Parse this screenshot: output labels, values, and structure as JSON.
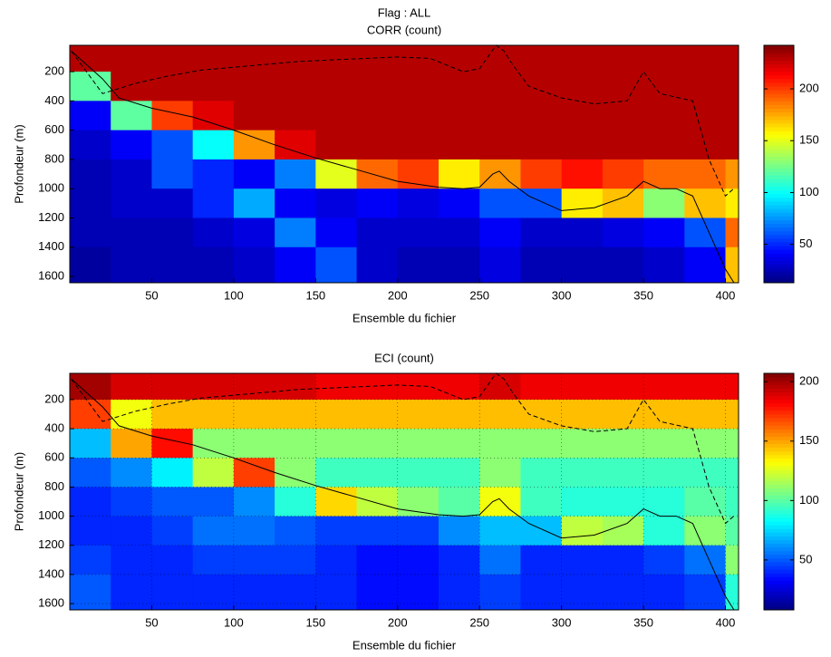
{
  "chart_data": [
    {
      "type": "heatmap",
      "super_title": "Flag : ALL",
      "title": "CORR (count)",
      "xlabel": "Ensemble du fichier",
      "ylabel": "Profondeur (m)",
      "xlim": [
        0,
        408
      ],
      "ylim": [
        20,
        1643
      ],
      "y_reversed": true,
      "xticks": [
        50,
        100,
        150,
        200,
        250,
        300,
        350,
        400
      ],
      "yticks": [
        200,
        400,
        600,
        800,
        1000,
        1200,
        1400,
        1600
      ],
      "grid": false,
      "colormap": "jet",
      "x_edges": [
        0,
        25,
        50,
        75,
        100,
        125,
        150,
        175,
        200,
        225,
        250,
        275,
        300,
        325,
        350,
        375,
        400,
        408
      ],
      "y_edges": [
        20,
        200,
        400,
        600,
        800,
        1000,
        1200,
        1400,
        1643
      ],
      "values": [
        [
          230,
          230,
          230,
          230,
          230,
          230,
          230,
          230,
          230,
          230,
          230,
          230,
          230,
          230,
          230,
          230,
          230
        ],
        [
          120,
          230,
          230,
          230,
          230,
          230,
          230,
          230,
          230,
          230,
          230,
          230,
          230,
          230,
          230,
          230,
          230
        ],
        [
          40,
          120,
          200,
          220,
          230,
          230,
          230,
          230,
          230,
          230,
          230,
          230,
          230,
          230,
          230,
          230,
          230
        ],
        [
          30,
          40,
          60,
          100,
          180,
          220,
          230,
          230,
          230,
          230,
          230,
          230,
          230,
          230,
          230,
          230,
          230
        ],
        [
          25,
          30,
          60,
          50,
          40,
          70,
          150,
          190,
          200,
          160,
          180,
          200,
          210,
          200,
          190,
          190,
          180
        ],
        [
          25,
          30,
          30,
          50,
          80,
          40,
          35,
          40,
          35,
          40,
          60,
          60,
          160,
          170,
          130,
          170,
          160
        ],
        [
          25,
          25,
          25,
          30,
          35,
          70,
          40,
          30,
          30,
          30,
          40,
          30,
          30,
          35,
          40,
          60,
          190
        ],
        [
          20,
          25,
          25,
          25,
          30,
          40,
          60,
          30,
          25,
          25,
          35,
          25,
          25,
          25,
          30,
          40,
          170
        ]
      ],
      "colorbar": {
        "lim": [
          13,
          242
        ],
        "ticks": [
          50,
          100,
          150,
          200
        ]
      },
      "lines": [
        {
          "style": "solid",
          "color": "#000000",
          "x": [
            1,
            10,
            20,
            30,
            50,
            75,
            100,
            125,
            150,
            175,
            200,
            225,
            240,
            250,
            258,
            262,
            268,
            280,
            300,
            320,
            340,
            350,
            360,
            370,
            380,
            390,
            400,
            405
          ],
          "y": [
            60,
            150,
            250,
            380,
            450,
            510,
            600,
            700,
            790,
            870,
            950,
            990,
            1000,
            990,
            900,
            880,
            950,
            1050,
            1150,
            1130,
            1050,
            950,
            1000,
            1000,
            1050,
            1300,
            1550,
            1640
          ]
        },
        {
          "style": "dashed",
          "color": "#000000",
          "x": [
            1,
            20,
            40,
            60,
            80,
            100,
            120,
            140,
            160,
            180,
            200,
            220,
            240,
            250,
            255,
            260,
            265,
            270,
            280,
            300,
            320,
            340,
            345,
            350,
            360,
            380,
            390,
            400,
            405
          ],
          "y": [
            60,
            350,
            280,
            230,
            190,
            170,
            150,
            130,
            120,
            110,
            100,
            110,
            200,
            180,
            100,
            20,
            60,
            150,
            300,
            380,
            420,
            400,
            300,
            200,
            350,
            400,
            800,
            1050,
            1000
          ]
        }
      ]
    },
    {
      "type": "heatmap",
      "title": "ECI (count)",
      "xlabel": "Ensemble du fichier",
      "ylabel": "Profondeur (m)",
      "xlim": [
        0,
        408
      ],
      "ylim": [
        20,
        1643
      ],
      "y_reversed": true,
      "xticks": [
        50,
        100,
        150,
        200,
        250,
        300,
        350,
        400
      ],
      "yticks": [
        200,
        400,
        600,
        800,
        1000,
        1200,
        1400,
        1600
      ],
      "grid": true,
      "colormap": "jet",
      "x_edges": [
        0,
        25,
        50,
        75,
        100,
        125,
        150,
        175,
        200,
        225,
        250,
        275,
        300,
        325,
        350,
        375,
        400,
        408
      ],
      "y_edges": [
        20,
        200,
        400,
        600,
        800,
        1000,
        1200,
        1400,
        1643
      ],
      "values": [
        [
          200,
          190,
          190,
          190,
          190,
          190,
          185,
          185,
          185,
          185,
          190,
          185,
          185,
          185,
          185,
          185,
          185
        ],
        [
          170,
          130,
          145,
          145,
          145,
          145,
          145,
          145,
          145,
          145,
          145,
          145,
          145,
          145,
          145,
          145,
          145
        ],
        [
          70,
          150,
          180,
          110,
          110,
          110,
          110,
          110,
          110,
          110,
          110,
          110,
          110,
          110,
          110,
          110,
          110
        ],
        [
          50,
          60,
          80,
          120,
          170,
          110,
          95,
          95,
          95,
          95,
          110,
          95,
          95,
          95,
          95,
          95,
          95
        ],
        [
          40,
          45,
          50,
          50,
          60,
          90,
          140,
          120,
          110,
          100,
          130,
          95,
          90,
          90,
          90,
          100,
          95
        ],
        [
          40,
          40,
          45,
          55,
          55,
          50,
          45,
          45,
          45,
          60,
          70,
          70,
          120,
          115,
          90,
          110,
          100
        ],
        [
          45,
          40,
          40,
          45,
          45,
          45,
          40,
          35,
          35,
          40,
          55,
          40,
          40,
          40,
          45,
          55,
          110
        ],
        [
          50,
          40,
          40,
          40,
          40,
          40,
          40,
          35,
          35,
          40,
          45,
          40,
          40,
          40,
          40,
          45,
          90
        ]
      ],
      "colorbar": {
        "lim": [
          8,
          207
        ],
        "ticks": [
          50,
          100,
          150,
          200
        ]
      },
      "lines": [
        {
          "style": "solid",
          "color": "#000000",
          "x": [
            1,
            10,
            20,
            30,
            50,
            75,
            100,
            125,
            150,
            175,
            200,
            225,
            240,
            250,
            258,
            262,
            268,
            280,
            300,
            320,
            340,
            350,
            360,
            370,
            380,
            390,
            400,
            405
          ],
          "y": [
            60,
            150,
            250,
            380,
            450,
            510,
            600,
            700,
            790,
            870,
            950,
            990,
            1000,
            990,
            900,
            880,
            950,
            1050,
            1150,
            1130,
            1050,
            950,
            1000,
            1000,
            1050,
            1300,
            1550,
            1640
          ]
        },
        {
          "style": "dashed",
          "color": "#000000",
          "x": [
            1,
            20,
            40,
            60,
            80,
            100,
            120,
            140,
            160,
            180,
            200,
            220,
            240,
            250,
            255,
            260,
            265,
            270,
            280,
            300,
            320,
            340,
            345,
            350,
            360,
            380,
            390,
            400,
            405
          ],
          "y": [
            60,
            350,
            280,
            230,
            190,
            170,
            150,
            130,
            120,
            110,
            100,
            110,
            200,
            180,
            100,
            20,
            60,
            150,
            300,
            380,
            420,
            400,
            300,
            200,
            350,
            400,
            800,
            1050,
            1000
          ]
        }
      ]
    }
  ]
}
